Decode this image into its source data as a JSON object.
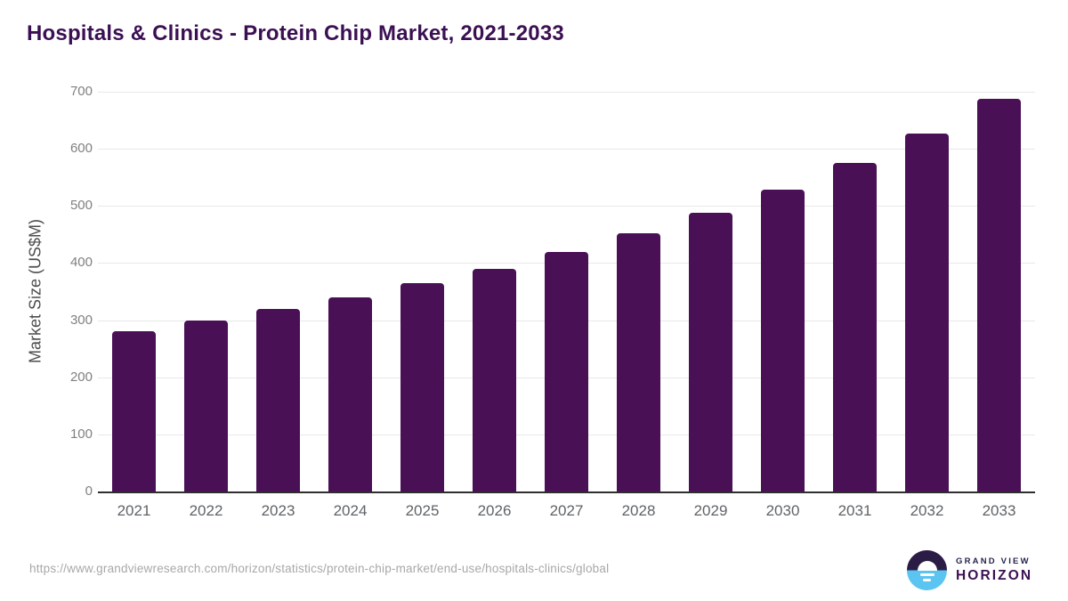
{
  "chart_data": {
    "type": "bar",
    "title": "Hospitals & Clinics - Protein Chip Market, 2021-2033",
    "xlabel": "",
    "ylabel": "Market Size (US$M)",
    "categories": [
      "2021",
      "2022",
      "2023",
      "2024",
      "2025",
      "2026",
      "2027",
      "2028",
      "2029",
      "2030",
      "2031",
      "2032",
      "2033"
    ],
    "values": [
      281,
      300,
      319,
      340,
      365,
      390,
      420,
      452,
      488,
      529,
      576,
      627,
      687
    ],
    "ylim": [
      0,
      700
    ],
    "yticks": [
      0,
      100,
      200,
      300,
      400,
      500,
      600,
      700
    ],
    "grid": true,
    "legend": false,
    "bar_color": "#4a1056"
  },
  "colors": {
    "title": "#3b1053",
    "bar": "#4a1056",
    "gridline": "#e8e8e8",
    "axis_line": "#2e2e2e",
    "y_tick_label": "#808080",
    "x_tick_label": "#5f6368",
    "source_url": "#a8a8a8",
    "logo_dark_half": "#2b1c45",
    "logo_blue_half": "#5bc4f1",
    "logo_grand_view_text": "#27244d",
    "logo_horizon_text": "#3d1353"
  },
  "footer": {
    "source_url": "https://www.grandviewresearch.com/horizon/statistics/protein-chip-market/end-use/hospitals-clinics/global",
    "logo": {
      "line1": "GRAND VIEW",
      "line2": "HORIZON"
    }
  }
}
